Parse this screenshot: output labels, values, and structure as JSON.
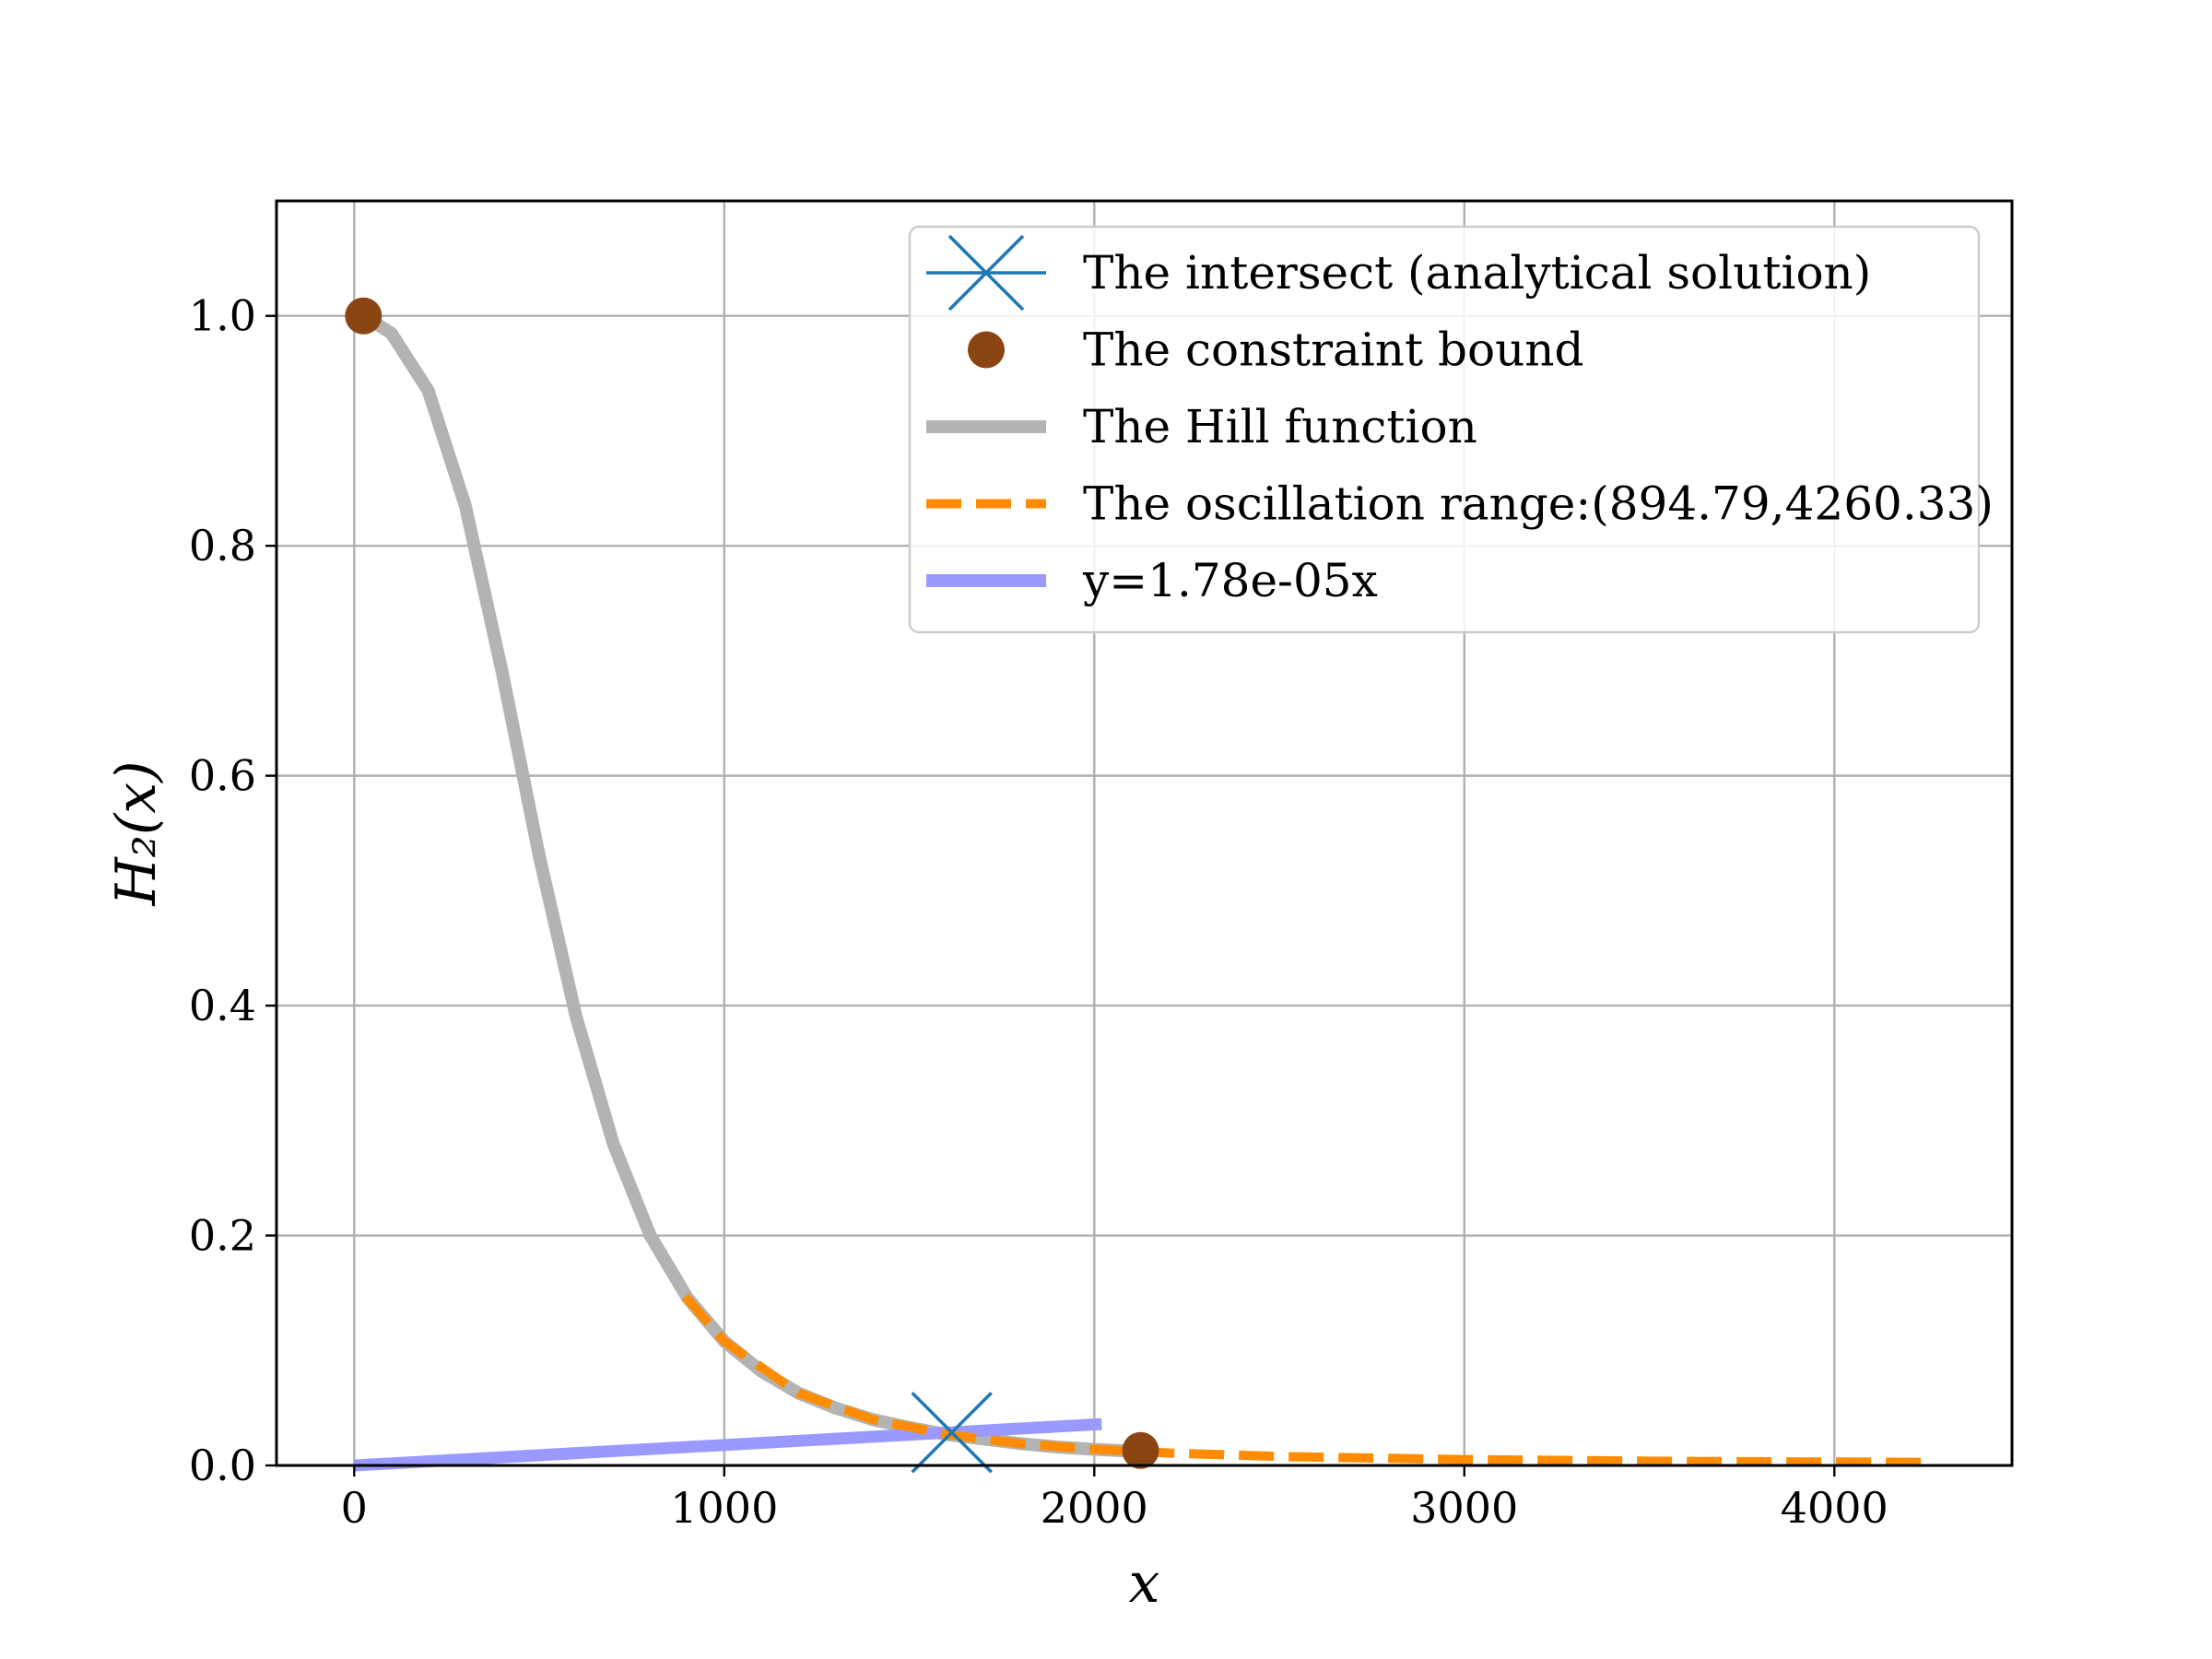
{
  "chart_data": {
    "type": "line",
    "title": "",
    "xlabel": "x",
    "ylabel": "H₂(x)",
    "xlim": [
      -210,
      4480
    ],
    "ylim": [
      0.0,
      1.1
    ],
    "xticks": [
      0,
      1000,
      2000,
      3000,
      4000
    ],
    "xtick_labels": [
      "0",
      "1000",
      "2000",
      "3000",
      "4000"
    ],
    "yticks": [
      0.0,
      0.2,
      0.4,
      0.6,
      0.8,
      1.0
    ],
    "ytick_labels": [
      "0.0",
      "0.2",
      "0.4",
      "0.6",
      "0.8",
      "1.0"
    ],
    "grid": true,
    "legend_position": "top-right",
    "series": [
      {
        "name": "The intersect (analytical solution)",
        "kind": "marker-x",
        "color": "#1f77b4",
        "x": [
          1615
        ],
        "y": [
          0.0287
        ]
      },
      {
        "name": "The constraint bound",
        "kind": "marker-dot",
        "color": "#8b4513",
        "x": [
          25,
          2125
        ],
        "y": [
          1.0,
          0.013
        ]
      },
      {
        "name": "The Hill function",
        "kind": "line",
        "color": "#b3b3b3",
        "x": [
          25,
          100,
          200,
          300,
          400,
          500,
          600,
          700,
          800,
          900,
          1000,
          1100,
          1200,
          1300,
          1400,
          1500,
          1600,
          1700,
          1800,
          1900,
          2000,
          2125
        ],
        "y": [
          1.0,
          0.985,
          0.935,
          0.835,
          0.69,
          0.53,
          0.39,
          0.28,
          0.2,
          0.146,
          0.108,
          0.082,
          0.063,
          0.05,
          0.04,
          0.033,
          0.027,
          0.023,
          0.019,
          0.016,
          0.014,
          0.012
        ]
      },
      {
        "name": "The oscillation range:(894.79,4260.33)",
        "kind": "dashed-line",
        "color": "#ff8c00",
        "x": [
          895,
          1000,
          1200,
          1400,
          1600,
          1800,
          2000,
          2200,
          2500,
          3000,
          3500,
          4000,
          4260
        ],
        "y": [
          0.147,
          0.108,
          0.063,
          0.04,
          0.027,
          0.019,
          0.014,
          0.0108,
          0.0078,
          0.0051,
          0.0037,
          0.003,
          0.0027
        ]
      },
      {
        "name": "y=1.78e-05x",
        "kind": "line",
        "color": "#9999ff",
        "x": [
          0,
          2020
        ],
        "y": [
          0.0,
          0.036
        ]
      }
    ]
  }
}
